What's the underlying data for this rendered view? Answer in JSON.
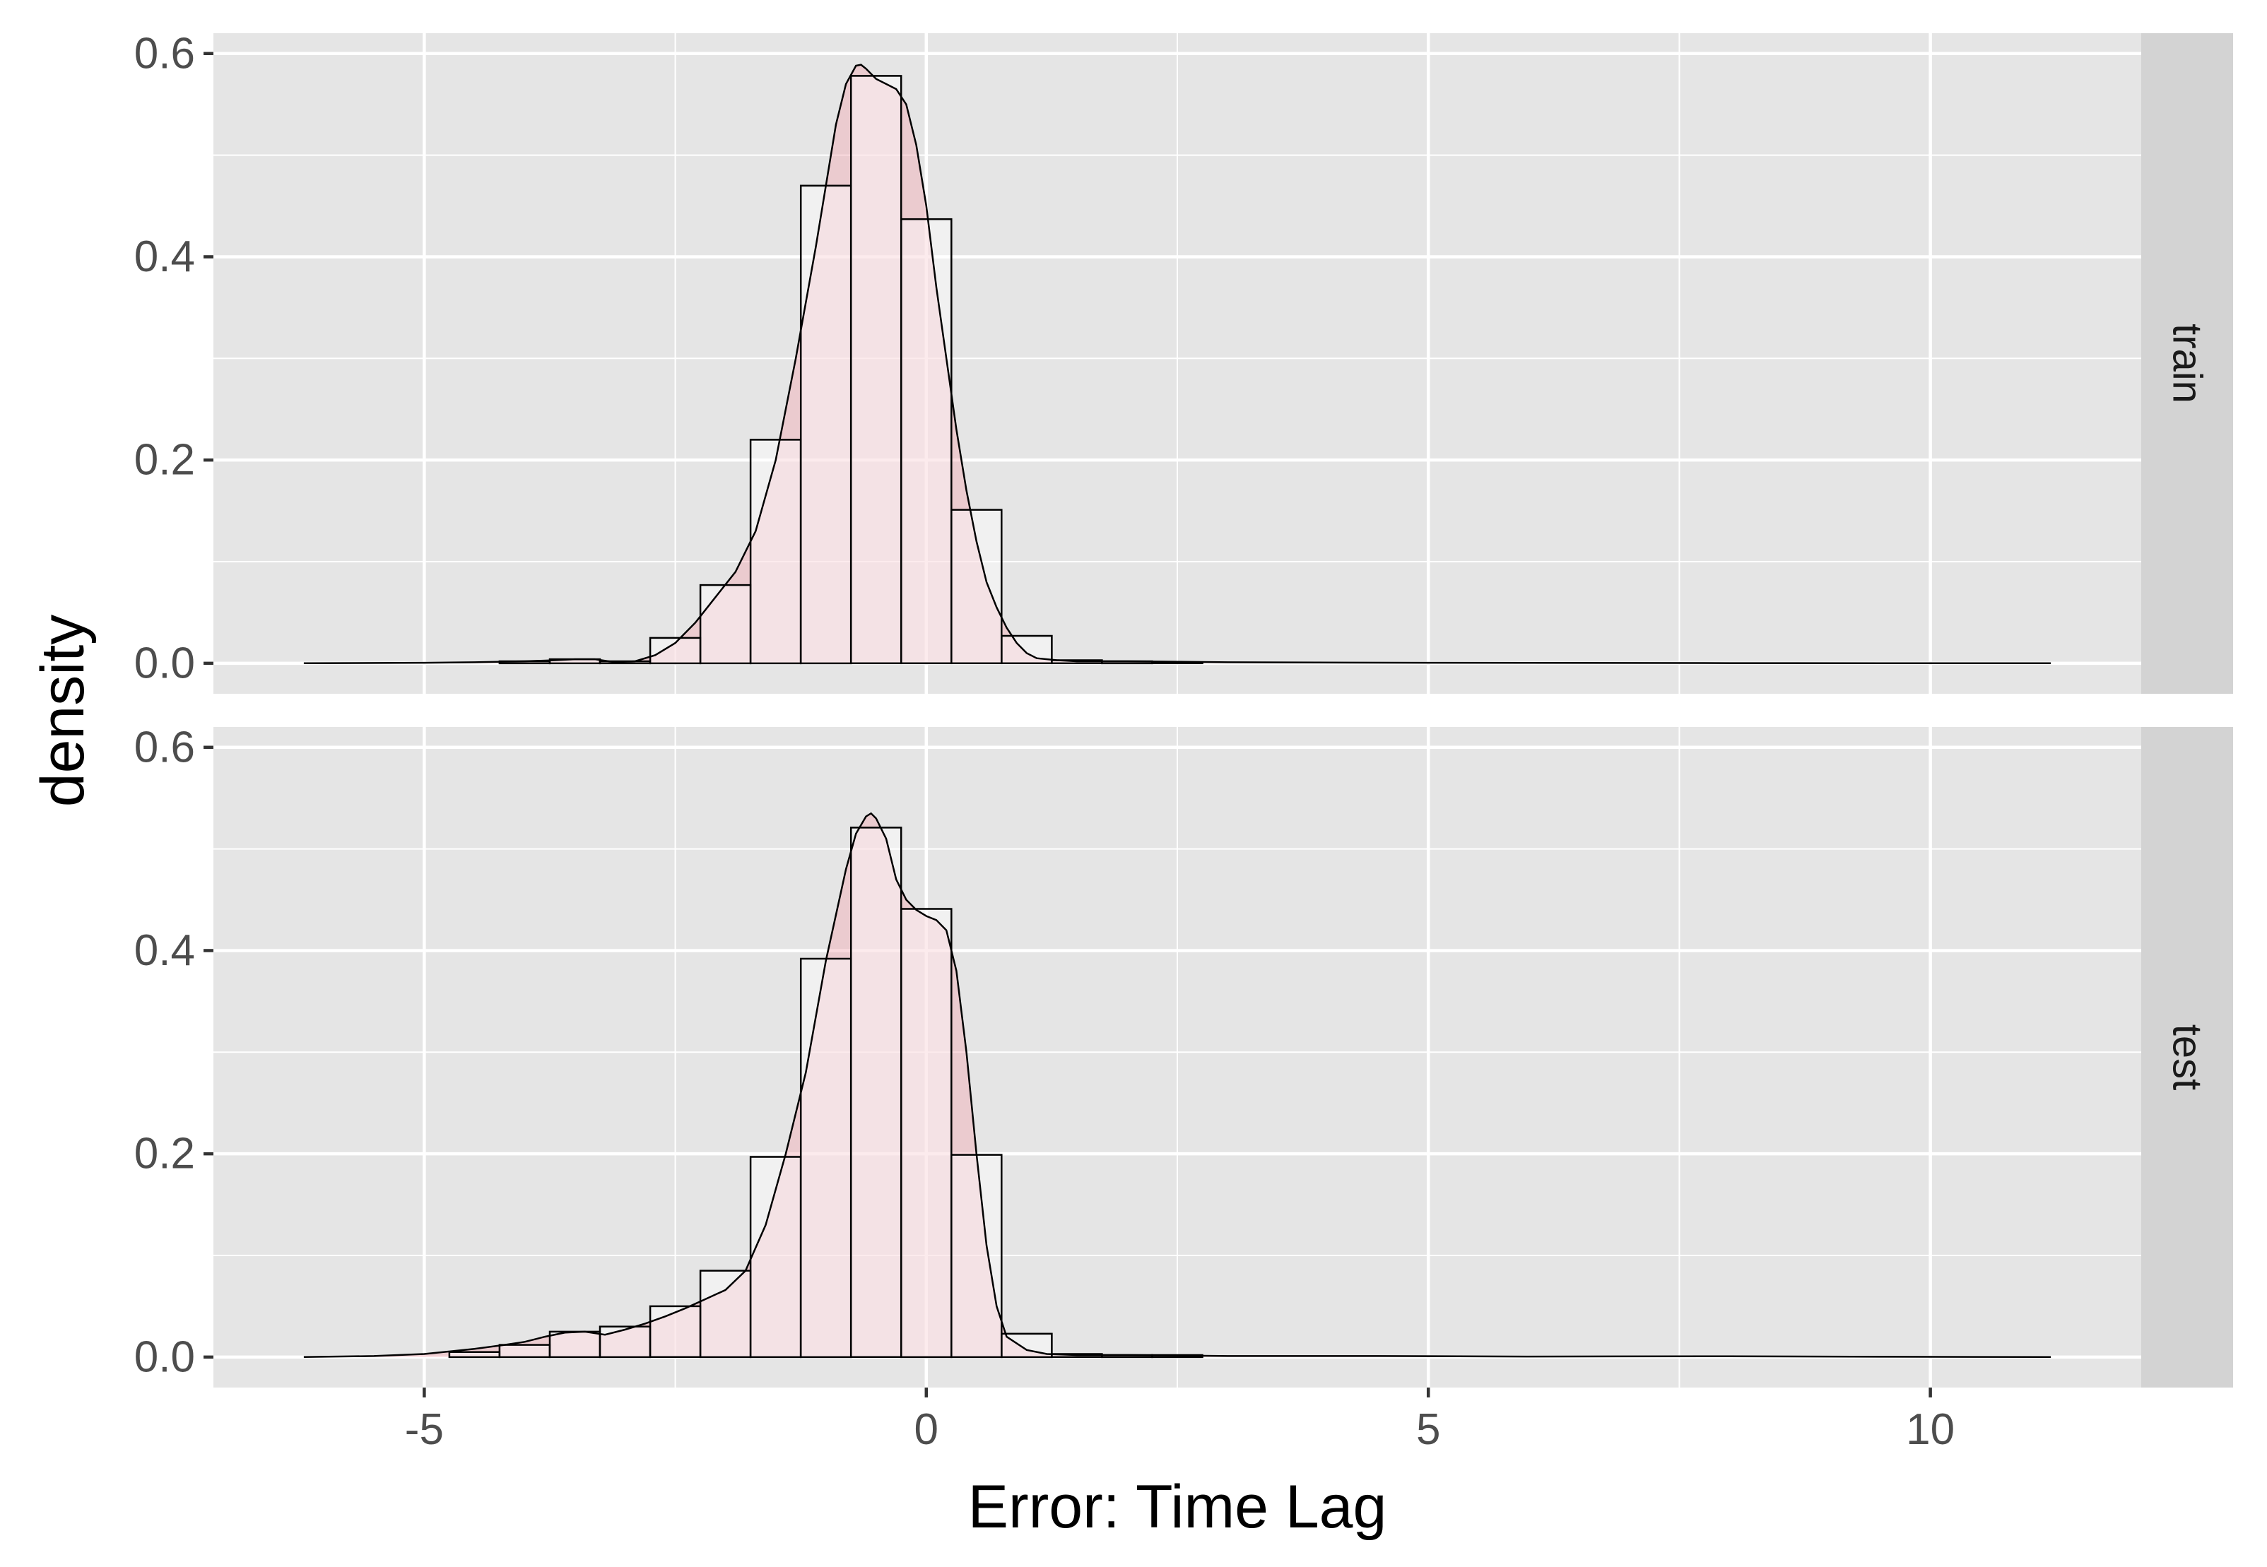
{
  "chart_data": {
    "type": "bar",
    "xlabel": "Error: Time Lag",
    "ylabel": "density",
    "xlim": [
      -7.1,
      12.1
    ],
    "ylim": [
      -0.03,
      0.62
    ],
    "x_ticks": [
      -5,
      0,
      5,
      10
    ],
    "x_tick_labels": [
      "-5",
      "0",
      "5",
      "10"
    ],
    "y_ticks": [
      0.0,
      0.2,
      0.4,
      0.6
    ],
    "y_tick_labels": [
      "0.0",
      "0.2",
      "0.4",
      "0.6"
    ],
    "grid": true,
    "bin_width": 0.5,
    "colors": {
      "panel_bg": "#e5e5e5",
      "grid": "#ffffff",
      "strip_bg": "#d3d3d3",
      "density_fill": "#f4a6b0",
      "histogram_fill": "#ffffff",
      "outline": "#000000",
      "axis_text": "#4d4d4d"
    },
    "facets": [
      {
        "label": "train",
        "histogram": {
          "bin_left": [
            -4.25,
            -3.75,
            -3.25,
            -2.75,
            -2.25,
            -1.75,
            -1.25,
            -0.75,
            -0.25,
            0.25,
            0.75,
            1.25,
            1.75,
            2.25
          ],
          "values": [
            0.002,
            0.004,
            0.002,
            0.025,
            0.077,
            0.22,
            0.47,
            0.578,
            0.437,
            0.151,
            0.027,
            0.003,
            0.002,
            0.001
          ]
        },
        "density": {
          "x": [
            -6.2,
            -5.0,
            -4.5,
            -4.0,
            -3.7,
            -3.5,
            -3.3,
            -3.1,
            -2.9,
            -2.7,
            -2.5,
            -2.3,
            -2.1,
            -1.9,
            -1.7,
            -1.5,
            -1.3,
            -1.1,
            -0.9,
            -0.8,
            -0.7,
            -0.65,
            -0.6,
            -0.5,
            -0.4,
            -0.3,
            -0.2,
            -0.1,
            0.0,
            0.1,
            0.2,
            0.3,
            0.4,
            0.5,
            0.6,
            0.7,
            0.8,
            0.9,
            1.0,
            1.1,
            1.3,
            1.5,
            2.0,
            3.0,
            5.0,
            8.0,
            11.2
          ],
          "y": [
            0.0,
            0.0005,
            0.001,
            0.002,
            0.003,
            0.004,
            0.004,
            0.001,
            0.002,
            0.008,
            0.02,
            0.04,
            0.065,
            0.09,
            0.13,
            0.2,
            0.3,
            0.41,
            0.53,
            0.57,
            0.588,
            0.589,
            0.585,
            0.575,
            0.57,
            0.565,
            0.55,
            0.51,
            0.45,
            0.37,
            0.3,
            0.23,
            0.17,
            0.12,
            0.08,
            0.055,
            0.035,
            0.02,
            0.01,
            0.005,
            0.003,
            0.002,
            0.002,
            0.001,
            0.0005,
            0.0002,
            0.0
          ]
        }
      },
      {
        "label": "test",
        "histogram": {
          "bin_left": [
            -4.75,
            -4.25,
            -3.75,
            -3.25,
            -2.75,
            -2.25,
            -1.75,
            -1.25,
            -0.75,
            -0.25,
            0.25,
            0.75,
            1.25,
            1.75,
            2.25
          ],
          "values": [
            0.005,
            0.012,
            0.025,
            0.03,
            0.05,
            0.085,
            0.197,
            0.392,
            0.521,
            0.441,
            0.199,
            0.023,
            0.003,
            0.002,
            0.002
          ]
        },
        "density": {
          "x": [
            -6.2,
            -5.5,
            -5.0,
            -4.5,
            -4.2,
            -4.0,
            -3.8,
            -3.6,
            -3.4,
            -3.2,
            -3.0,
            -2.8,
            -2.6,
            -2.4,
            -2.2,
            -2.0,
            -1.8,
            -1.6,
            -1.4,
            -1.2,
            -1.0,
            -0.8,
            -0.7,
            -0.6,
            -0.55,
            -0.5,
            -0.4,
            -0.3,
            -0.2,
            -0.1,
            0.0,
            0.1,
            0.2,
            0.3,
            0.4,
            0.5,
            0.6,
            0.7,
            0.8,
            1.0,
            1.2,
            1.5,
            2.0,
            3.0,
            4.5,
            6.0,
            8.0,
            9.5,
            11.2
          ],
          "y": [
            0.0,
            0.001,
            0.003,
            0.008,
            0.012,
            0.015,
            0.02,
            0.024,
            0.025,
            0.022,
            0.027,
            0.033,
            0.04,
            0.048,
            0.057,
            0.066,
            0.085,
            0.13,
            0.2,
            0.28,
            0.39,
            0.48,
            0.515,
            0.532,
            0.535,
            0.53,
            0.51,
            0.47,
            0.45,
            0.44,
            0.434,
            0.43,
            0.42,
            0.38,
            0.3,
            0.2,
            0.11,
            0.05,
            0.02,
            0.007,
            0.003,
            0.002,
            0.002,
            0.001,
            0.001,
            0.0005,
            0.0008,
            0.0003,
            0.0
          ]
        }
      }
    ]
  }
}
